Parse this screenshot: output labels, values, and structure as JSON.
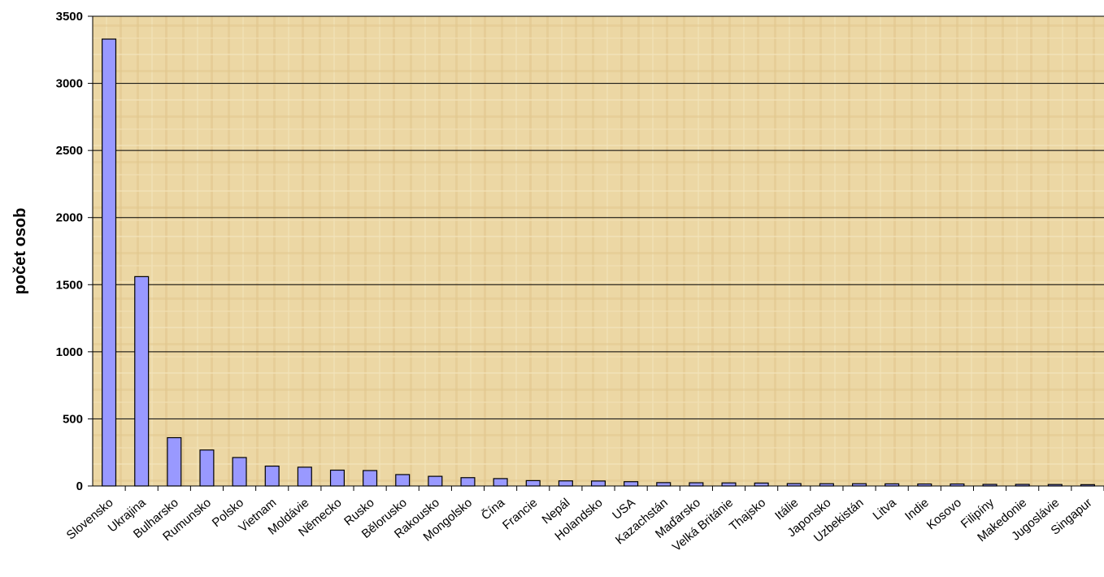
{
  "chart_data": {
    "type": "bar",
    "title": "",
    "xlabel": "",
    "ylabel": "počet osob",
    "ylim": [
      0,
      3500
    ],
    "yticks": [
      0,
      500,
      1000,
      1500,
      2000,
      2500,
      3000,
      3500
    ],
    "grid": true,
    "legend": "none",
    "categories": [
      "Slovensko",
      "Ukrajina",
      "Bulharsko",
      "Rumunsko",
      "Polsko",
      "Vietnam",
      "Moldávie",
      "Německo",
      "Rusko",
      "Bělorusko",
      "Rakousko",
      "Mongolsko",
      "Čína",
      "Francie",
      "Nepál",
      "Holandsko",
      "USA",
      "Kazachstán",
      "Maďarsko",
      "Velká Británie",
      "Thajsko",
      "Itálie",
      "Japonsko",
      "Uzbekistán",
      "Litva",
      "Indie",
      "Kosovo",
      "Filipíny",
      "Makedonie",
      "Jugoslávie",
      "Singapur"
    ],
    "values": [
      3330,
      1560,
      360,
      268,
      212,
      148,
      140,
      118,
      115,
      85,
      72,
      62,
      55,
      40,
      38,
      37,
      32,
      25,
      24,
      23,
      22,
      18,
      17,
      17,
      16,
      15,
      15,
      12,
      12,
      11,
      10
    ],
    "colors": {
      "bar": "#9999ff",
      "bar_stroke": "#000000",
      "plot_bg": "#ecd7a4",
      "grid": "#000000"
    }
  }
}
